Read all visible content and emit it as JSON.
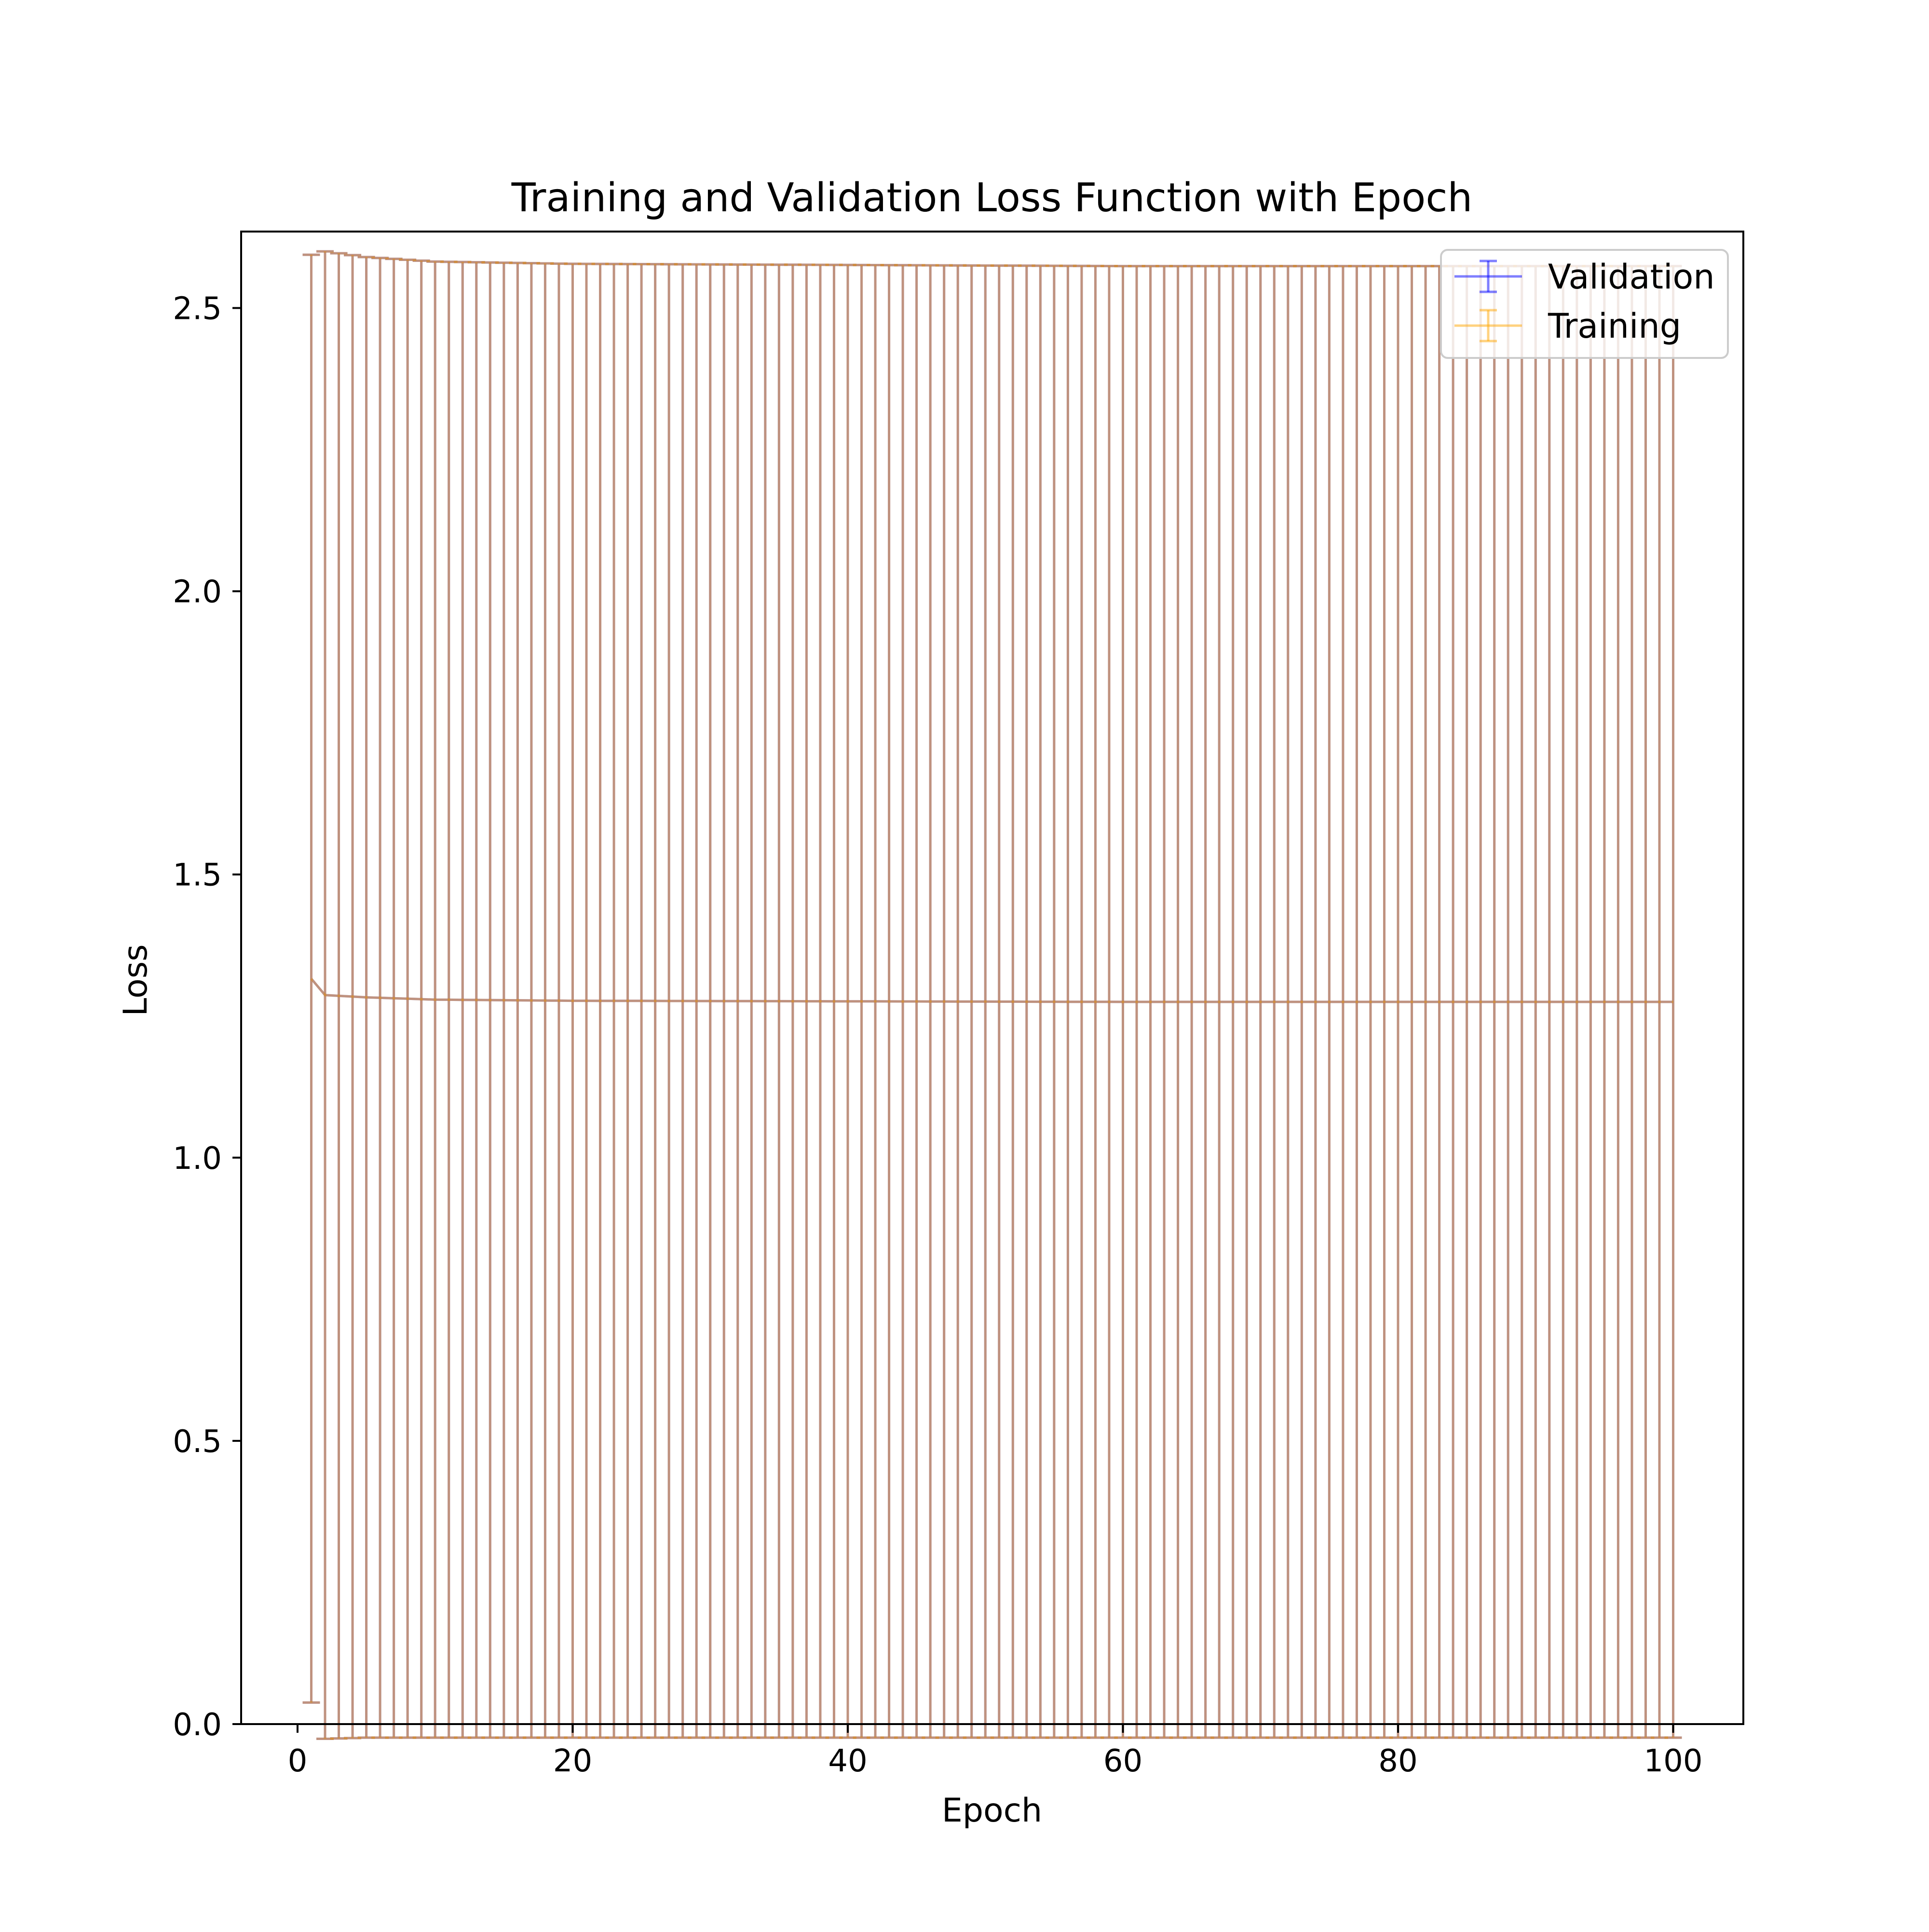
{
  "chart_data": {
    "type": "line",
    "title": "Training and Validation Loss Function with Epoch",
    "xlabel": "Epoch",
    "ylabel": "Loss",
    "xlim": [
      -4.1,
      105.1
    ],
    "ylim": [
      0.0,
      2.635
    ],
    "x_ticks": [
      0,
      20,
      40,
      60,
      80,
      100
    ],
    "x_tick_labels": [
      "0",
      "20",
      "40",
      "60",
      "80",
      "100"
    ],
    "y_ticks": [
      0.0,
      0.5,
      1.0,
      1.5,
      2.0,
      2.5
    ],
    "y_tick_labels": [
      "0.0",
      "0.5",
      "1.0",
      "1.5",
      "2.0",
      "2.5"
    ],
    "grid": false,
    "legend_position": "upper right",
    "error_bars": true,
    "x": {
      "start": 1,
      "end": 100,
      "step": 1
    },
    "series": [
      {
        "name": "Validation",
        "color": "#0000ff",
        "alpha": 0.5,
        "curve_points": [
          [
            1,
            1.316
          ],
          [
            2,
            1.287
          ],
          [
            5,
            1.283
          ],
          [
            10,
            1.279
          ],
          [
            20,
            1.277
          ],
          [
            40,
            1.276
          ],
          [
            60,
            1.275
          ],
          [
            80,
            1.275
          ],
          [
            100,
            1.275
          ]
        ],
        "error_points": [
          [
            1,
            1.278
          ],
          [
            2,
            1.313
          ],
          [
            5,
            1.307
          ],
          [
            10,
            1.303
          ],
          [
            20,
            1.301
          ],
          [
            40,
            1.3
          ],
          [
            60,
            1.299
          ],
          [
            80,
            1.299
          ],
          [
            100,
            1.299
          ]
        ]
      },
      {
        "name": "Training",
        "color": "#ffa500",
        "alpha": 0.5,
        "curve_points": [
          [
            1,
            1.316
          ],
          [
            2,
            1.287
          ],
          [
            5,
            1.283
          ],
          [
            10,
            1.279
          ],
          [
            20,
            1.277
          ],
          [
            40,
            1.276
          ],
          [
            60,
            1.275
          ],
          [
            80,
            1.275
          ],
          [
            100,
            1.275
          ]
        ],
        "error_points": [
          [
            1,
            1.278
          ],
          [
            2,
            1.313
          ],
          [
            5,
            1.307
          ],
          [
            10,
            1.303
          ],
          [
            20,
            1.301
          ],
          [
            40,
            1.3
          ],
          [
            60,
            1.299
          ],
          [
            80,
            1.299
          ],
          [
            100,
            1.299
          ]
        ]
      }
    ]
  }
}
